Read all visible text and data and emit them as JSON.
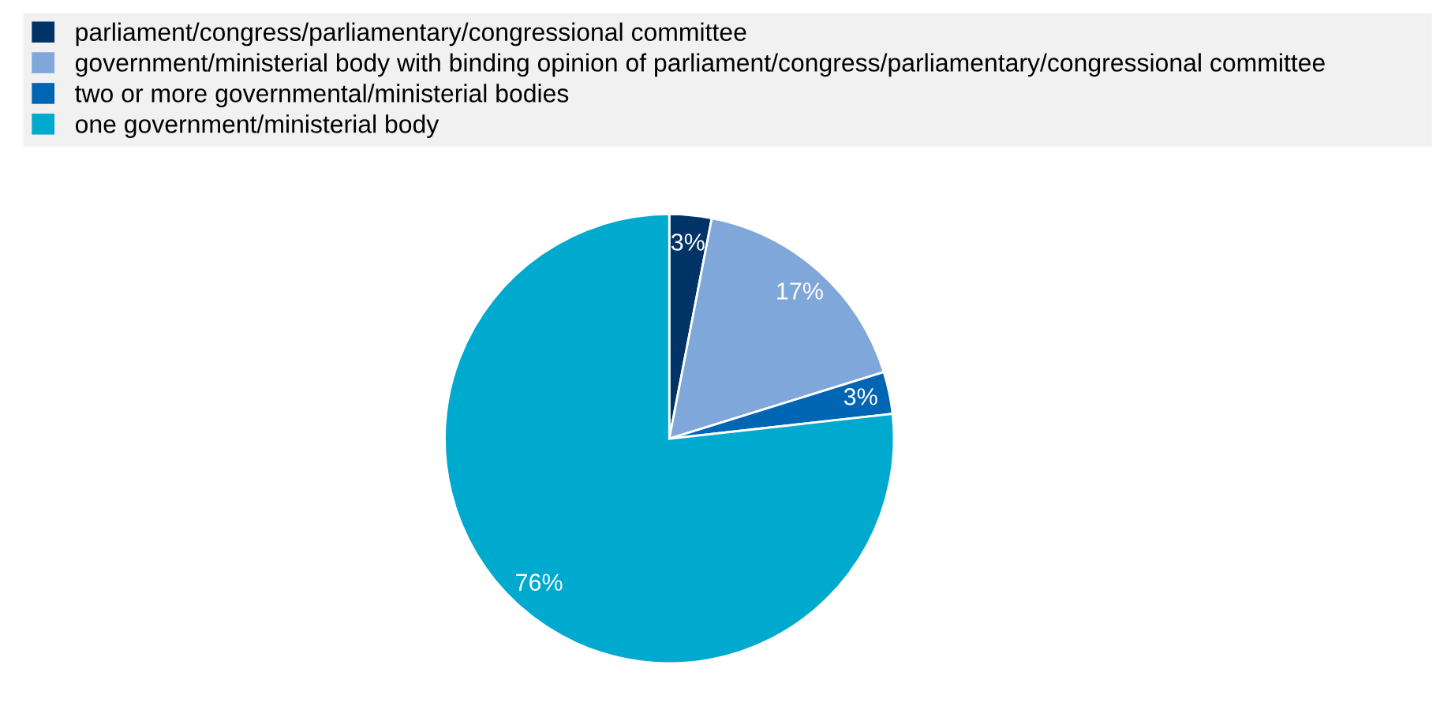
{
  "chart_data": {
    "type": "pie",
    "categories": [
      "parliament/congress/parliamentary/congressional committee",
      "government/ministerial body with binding opinion of parliament/congress/parliamentary/congressional committee",
      "two or more governmental/ministerial bodies",
      "one government/ministerial body"
    ],
    "values": [
      3,
      17,
      3,
      76
    ],
    "colors": [
      "#003366",
      "#7fa7d9",
      "#0066b3",
      "#00a9ce"
    ],
    "value_labels": [
      "3%",
      "17%",
      "3%",
      "76%"
    ],
    "legend": "top"
  }
}
